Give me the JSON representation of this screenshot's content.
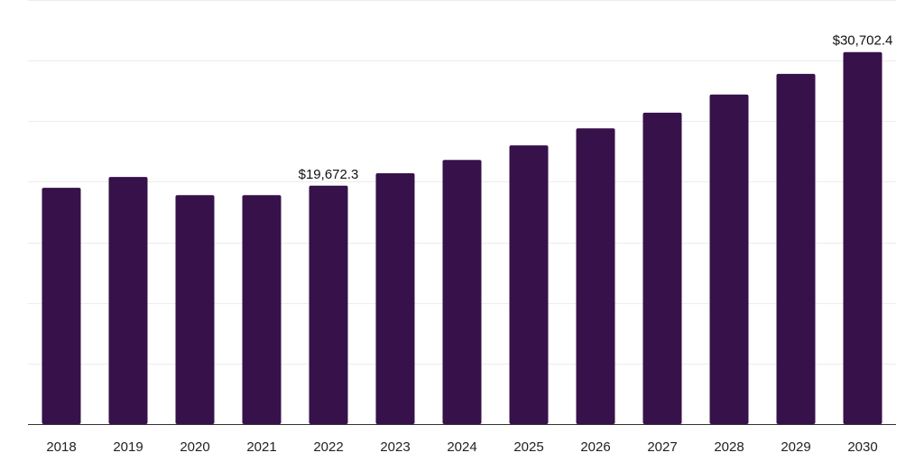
{
  "chart_data": {
    "type": "bar",
    "categories": [
      "2018",
      "2019",
      "2020",
      "2021",
      "2022",
      "2023",
      "2024",
      "2025",
      "2026",
      "2027",
      "2028",
      "2029",
      "2030"
    ],
    "values": [
      19500,
      20400,
      18900,
      18900,
      19672.3,
      20700,
      21800,
      23000,
      24400,
      25700,
      27200,
      28900,
      30702.4
    ],
    "data_labels": [
      {
        "index": 4,
        "text": "$19,672.3"
      },
      {
        "index": 12,
        "text": "$30,702.4"
      }
    ],
    "title": "",
    "xlabel": "",
    "ylabel": "",
    "ylim": [
      0,
      35000
    ],
    "y_gridlines": [
      0,
      5000,
      10000,
      15000,
      20000,
      25000,
      30000,
      35000
    ],
    "grid": true,
    "y_tick_labels_shown": false,
    "legend": "none",
    "colors": {
      "bar": "#36114a",
      "gridline": "#ececec",
      "axis": "#333333",
      "text": "#222222"
    }
  }
}
